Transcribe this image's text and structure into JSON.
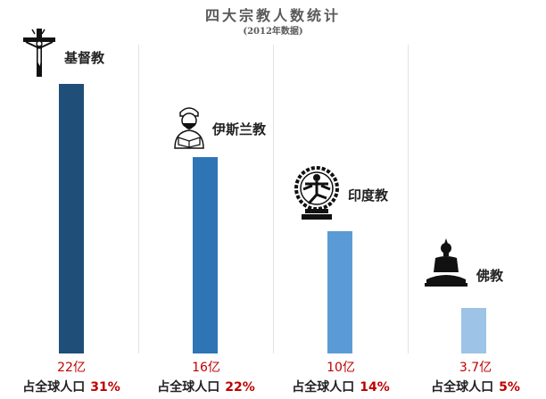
{
  "chart_data": {
    "type": "bar",
    "title": "四大宗教人数统计",
    "subtitle": "(2012年数据)",
    "categories": [
      "基督教",
      "伊斯兰教",
      "印度教",
      "佛教"
    ],
    "values": [
      22,
      16,
      10,
      3.7
    ],
    "value_labels": [
      "22亿",
      "16亿",
      "10亿",
      "3.7亿"
    ],
    "share_label": "占全球人口",
    "shares": [
      "31%",
      "22%",
      "14%",
      "5%"
    ],
    "colors": [
      "#1f4e79",
      "#2e75b6",
      "#5b9bd5",
      "#9dc3e6"
    ],
    "ylim": [
      0,
      24
    ],
    "icons": [
      "crucifix-icon",
      "muslim-reader-icon",
      "nataraja-icon",
      "buddha-icon"
    ]
  }
}
